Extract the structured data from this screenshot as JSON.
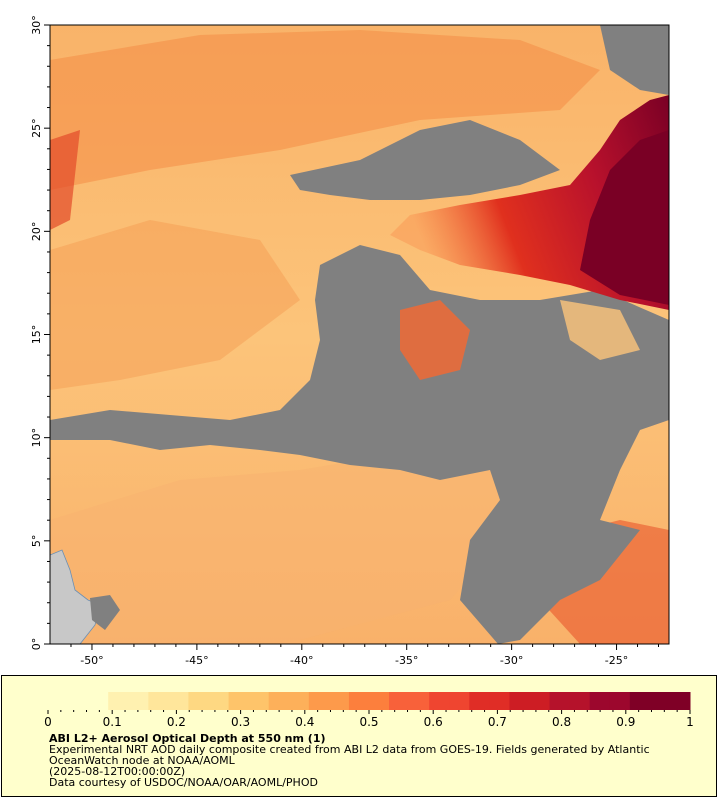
{
  "map": {
    "lon_ticks": [
      "-50°",
      "-45°",
      "-40°",
      "-35°",
      "-30°",
      "-25°"
    ],
    "lat_ticks": [
      "30°",
      "25°",
      "20°",
      "15°",
      "10°",
      "5°",
      "0°"
    ],
    "lon_range": [
      -52,
      -22.5
    ],
    "lat_range": [
      0,
      30
    ],
    "colors": {
      "no_data": "#808080",
      "land": "#c8c8c8",
      "low": "#ffe6a0",
      "mid": "#f9a04f",
      "high": "#e0301e",
      "max": "#7a0025"
    }
  },
  "legend": {
    "ticks": [
      "0",
      "0.1",
      "0.2",
      "0.3",
      "0.4",
      "0.5",
      "0.6",
      "0.7",
      "0.8",
      "0.9",
      "1"
    ],
    "colors": [
      "#ffffcc",
      "#fff1b0",
      "#ffe69b",
      "#fed882",
      "#fec46a",
      "#fdb05a",
      "#fd9a4b",
      "#fc7f3d",
      "#f8613a",
      "#ef4530",
      "#e02d26",
      "#cd1d24",
      "#b5122b",
      "#9c072d",
      "#7f0026"
    ],
    "title": "ABI L2+ Aerosol Optical Depth at 550 nm (1)",
    "line1": "Experimental NRT AOD daily composite created from ABI L2 data from GOES-19. Fields generated by Atlantic",
    "line2": "OceanWatch node at NOAA/AOML",
    "line3": "(2025-08-12T00:00:00Z)",
    "line4": "Data courtesy of USDOC/NOAA/OAR/AOML/PHOD"
  }
}
